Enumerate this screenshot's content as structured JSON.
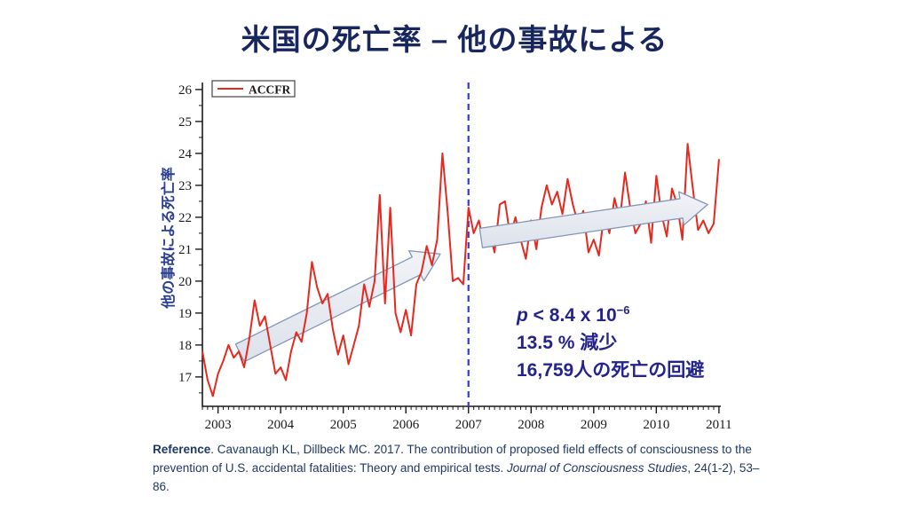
{
  "slide": {
    "title": "米国の死亡率 – 他の事故による"
  },
  "stats": {
    "p_italic": "p",
    "p_text": " < 8.4 x 10",
    "p_exp": "−6",
    "line2": "13.5 % 減少",
    "line3": "16,759人の死亡の回避"
  },
  "reference": {
    "label": "Reference",
    "line1_rest": ". Cavanaugh KL, Dillbeck MC. 2017. The contribution of proposed field effects of consciousness to the",
    "line2_pre": "prevention of U.S. accidental fatalities: Theory and empirical tests. ",
    "journal": "Journal of Consciousness Studies",
    "line2_post": ", 24(1-2), 53–86."
  },
  "chart_data": {
    "type": "line",
    "ylabel": "他の事故による死亡率",
    "legend": {
      "label": "ACCFR",
      "position": "top-left"
    },
    "xlim": [
      2002.75,
      2011.03
    ],
    "ylim": [
      16.08,
      26.22
    ],
    "xticks": [
      2003,
      2004,
      2005,
      2006,
      2007,
      2008,
      2009,
      2010,
      2011
    ],
    "yticks": [
      17,
      18,
      19,
      20,
      21,
      22,
      23,
      24,
      25,
      26
    ],
    "x_minor_step_years": 0.0833333,
    "y_minor_step": 0.5,
    "grid": false,
    "colors": {
      "line": "#e6291f",
      "intervention": "#3a3ad0",
      "arrow_fill_top": "#f1f3f7",
      "arrow_fill_bottom": "#dde2eb",
      "arrow_stroke": "#8296b8",
      "axis": "#1a1a1a"
    },
    "intervention_line": {
      "x": 2007,
      "style": "dashed"
    },
    "trend_arrows": [
      {
        "x1": 2003.35,
        "y1": 17.75,
        "x2": 2006.55,
        "y2": 20.85,
        "layer": "under"
      },
      {
        "x1": 2007.2,
        "y1": 21.35,
        "x2": 2010.82,
        "y2": 22.4,
        "layer": "over"
      }
    ],
    "series": [
      {
        "name": "ACCFR",
        "x_start": 2002.75,
        "x_step": 0.0833333,
        "values": [
          17.8,
          16.9,
          16.4,
          17.1,
          17.5,
          18.0,
          17.6,
          17.8,
          17.3,
          18.2,
          19.4,
          18.6,
          18.9,
          18.0,
          17.1,
          17.3,
          16.9,
          17.8,
          18.4,
          18.1,
          19.0,
          20.6,
          19.8,
          19.3,
          19.6,
          18.5,
          17.7,
          18.3,
          17.4,
          18.0,
          18.6,
          19.9,
          19.2,
          20.0,
          22.7,
          19.3,
          22.3,
          19.0,
          18.4,
          19.1,
          18.3,
          19.9,
          20.3,
          21.1,
          20.5,
          21.3,
          24.0,
          22.2,
          20.0,
          20.1,
          19.9,
          22.3,
          21.5,
          21.9,
          21.1,
          21.6,
          20.9,
          22.4,
          22.5,
          21.4,
          22.0,
          21.3,
          20.7,
          21.9,
          21.0,
          22.3,
          23.0,
          22.4,
          22.8,
          22.1,
          23.2,
          22.4,
          21.8,
          22.2,
          20.9,
          21.3,
          20.8,
          22.1,
          21.5,
          22.6,
          21.9,
          23.4,
          22.3,
          21.5,
          21.8,
          22.5,
          21.2,
          23.3,
          22.1,
          21.4,
          22.9,
          22.4,
          21.3,
          24.3,
          22.9,
          21.6,
          21.9,
          21.5,
          21.8,
          23.8
        ]
      }
    ]
  }
}
